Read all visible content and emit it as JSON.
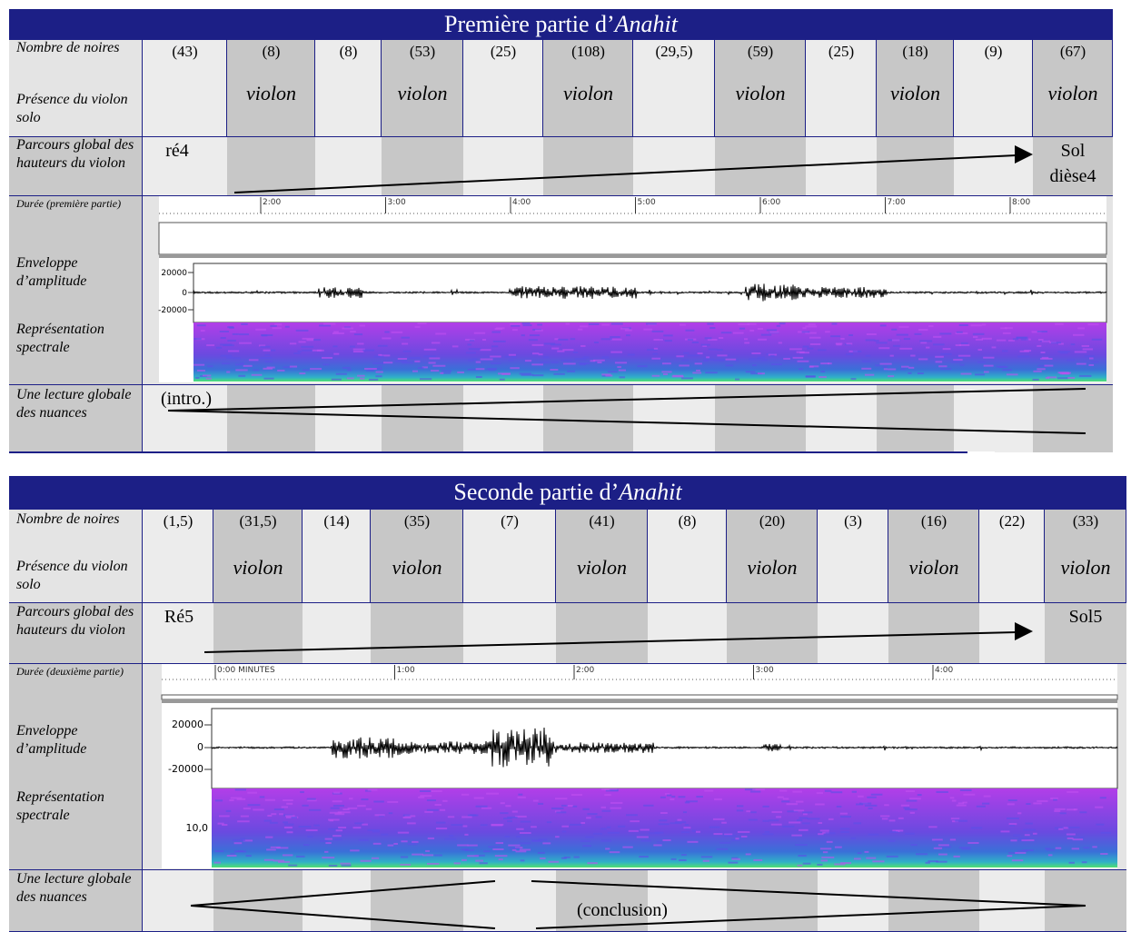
{
  "sections": [
    {
      "title_prefix": "Première partie d’",
      "title_italic": "Anahit",
      "row_labels": [
        "Nombre de noires",
        "Présence du violon solo",
        "Parcours global des hauteurs du violon",
        "Durée (première partie)",
        "Enveloppe d’amplitude",
        "Représentation spectrale",
        "Une lecture globale des nuances"
      ],
      "counts": [
        "(43)",
        "(8)",
        "(8)",
        "(53)",
        "(25)",
        "(108)",
        "(29,5)",
        "(59)",
        "(25)",
        "(18)",
        "(9)",
        "(67)"
      ],
      "presence": [
        null,
        "violon",
        null,
        "violon",
        null,
        "violon",
        null,
        "violon",
        null,
        "violon",
        null,
        "violon"
      ],
      "pitch_start": "ré4",
      "pitch_end": "Sol dièse4",
      "time_ticks": [
        "2:00",
        "3:00",
        "4:00",
        "5:00",
        "6:00",
        "7:00",
        "8:00"
      ],
      "amplitude_ticks": [
        "20000",
        "0",
        "-20000"
      ],
      "nuance_label": "(intro.)"
    },
    {
      "title_prefix": "Seconde partie d’",
      "title_italic": "Anahit",
      "row_labels": [
        "Nombre de noires",
        "Présence du violon solo",
        "Parcours global des hauteurs du violon",
        "Durée (deuxième partie)",
        "Enveloppe d’amplitude",
        "Représentation spectrale",
        "Une lecture globale des nuances"
      ],
      "counts": [
        "(1,5)",
        "(31,5)",
        "(14)",
        "(35)",
        "(7)",
        "(41)",
        "(8)",
        "(20)",
        "(3)",
        "(16)",
        "(22)",
        "(33)"
      ],
      "presence": [
        null,
        "violon",
        null,
        "violon",
        null,
        "violon",
        null,
        "violon",
        null,
        "violon",
        null,
        "violon"
      ],
      "pitch_start": "Ré5",
      "pitch_end": "Sol5",
      "time_ticks": [
        "0:00 MINUTES",
        "1:00",
        "2:00",
        "3:00",
        "4:00"
      ],
      "amplitude_ticks": [
        "20000",
        "0",
        "-20000"
      ],
      "spectral_tick": "10,0",
      "nuance_label": "(conclusion)"
    }
  ]
}
